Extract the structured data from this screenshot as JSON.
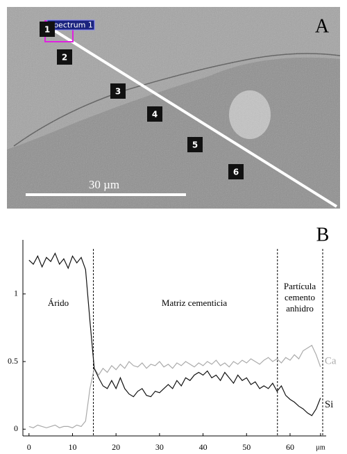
{
  "image": {
    "label": "A",
    "spectrum_label": "Spectrum 1",
    "markers": [
      "1",
      "2",
      "3",
      "4",
      "5",
      "6"
    ],
    "scale_bar": "30 µm"
  },
  "chart_data": {
    "type": "line",
    "label": "B",
    "annotations": [
      "Árido",
      "Matriz cementicia",
      [
        "Partícula",
        "cemento",
        "anhidro"
      ]
    ],
    "vlines": [
      14.8,
      57.1,
      67.5
    ],
    "x": [
      0,
      1,
      2,
      3,
      4,
      5,
      6,
      7,
      8,
      9,
      10,
      11,
      12,
      13,
      14,
      15,
      16,
      17,
      18,
      19,
      20,
      21,
      22,
      23,
      24,
      25,
      26,
      27,
      28,
      29,
      30,
      31,
      32,
      33,
      34,
      35,
      36,
      37,
      38,
      39,
      40,
      41,
      42,
      43,
      44,
      45,
      46,
      47,
      48,
      49,
      50,
      51,
      52,
      53,
      54,
      55,
      56,
      57,
      58,
      59,
      60,
      61,
      62,
      63,
      64,
      65,
      66,
      67
    ],
    "series": [
      {
        "name": "Ca",
        "color": "#aaaaaa",
        "values": [
          0.02,
          0.01,
          0.03,
          0.02,
          0.01,
          0.02,
          0.03,
          0.01,
          0.02,
          0.02,
          0.01,
          0.03,
          0.02,
          0.06,
          0.3,
          0.45,
          0.4,
          0.45,
          0.42,
          0.47,
          0.44,
          0.48,
          0.45,
          0.5,
          0.47,
          0.46,
          0.49,
          0.45,
          0.48,
          0.47,
          0.5,
          0.46,
          0.48,
          0.45,
          0.49,
          0.47,
          0.5,
          0.48,
          0.46,
          0.49,
          0.47,
          0.5,
          0.48,
          0.51,
          0.47,
          0.49,
          0.46,
          0.5,
          0.48,
          0.51,
          0.49,
          0.52,
          0.5,
          0.48,
          0.51,
          0.53,
          0.5,
          0.52,
          0.49,
          0.53,
          0.51,
          0.55,
          0.52,
          0.58,
          0.6,
          0.62,
          0.55,
          0.46
        ]
      },
      {
        "name": "Si",
        "color": "#111111",
        "values": [
          1.25,
          1.22,
          1.28,
          1.2,
          1.27,
          1.24,
          1.3,
          1.22,
          1.26,
          1.19,
          1.28,
          1.23,
          1.27,
          1.18,
          0.8,
          0.45,
          0.38,
          0.32,
          0.3,
          0.36,
          0.3,
          0.38,
          0.3,
          0.26,
          0.24,
          0.28,
          0.3,
          0.25,
          0.24,
          0.28,
          0.27,
          0.3,
          0.33,
          0.3,
          0.36,
          0.32,
          0.38,
          0.36,
          0.4,
          0.42,
          0.4,
          0.43,
          0.38,
          0.4,
          0.36,
          0.42,
          0.38,
          0.34,
          0.4,
          0.36,
          0.38,
          0.33,
          0.35,
          0.3,
          0.32,
          0.3,
          0.34,
          0.28,
          0.32,
          0.25,
          0.22,
          0.2,
          0.17,
          0.15,
          0.12,
          0.1,
          0.15,
          0.23
        ]
      }
    ],
    "xlim": [
      -1.4,
      68.3
    ],
    "xticks": [
      0,
      10,
      20,
      30,
      40,
      50,
      60,
      {
        "value": 67,
        "label": "µm"
      }
    ],
    "ylim": [
      -0.05,
      1.4
    ],
    "yticks": [
      0,
      0.5,
      1
    ]
  }
}
